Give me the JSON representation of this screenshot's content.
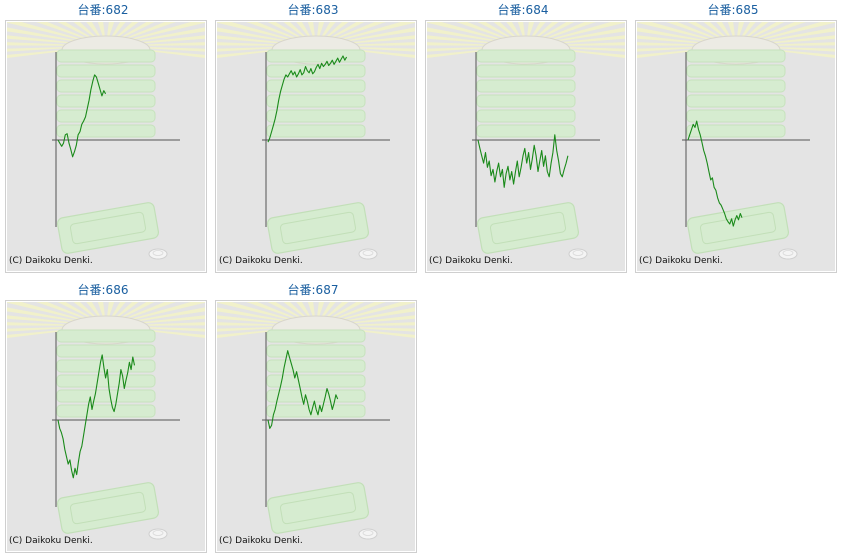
{
  "colors": {
    "title": "#1a5fa0",
    "graph_line": "#1a8a1a",
    "axis": "#555555",
    "panel_bg": "#e4e4e4",
    "ray": "#f2f2c8",
    "machine": "#d6ecd0",
    "frame_border": "#cfcfcf"
  },
  "copyright": "(C) Daikoku Denki.",
  "background_icons": [
    "light-rays",
    "slot-machine-stack",
    "coin-tray",
    "medal-coin-icon"
  ],
  "chart_data": [
    {
      "type": "line",
      "title": "台番:682",
      "series": [
        {
          "values": [
            0,
            -3,
            -6,
            -3,
            5,
            6,
            -3,
            -9,
            -16,
            -11,
            -5,
            5,
            8,
            15,
            18,
            22,
            30,
            38,
            48,
            56,
            62,
            60,
            54,
            48,
            42,
            47,
            44
          ]
        }
      ]
    },
    {
      "type": "line",
      "title": "台番:683",
      "series": [
        {
          "values": [
            -2,
            2,
            8,
            14,
            20,
            28,
            38,
            46,
            52,
            58,
            62,
            60,
            63,
            66,
            62,
            65,
            60,
            63,
            67,
            62,
            64,
            70,
            66,
            64,
            68,
            63,
            65,
            69,
            72,
            68,
            73,
            70,
            72,
            75,
            71,
            73,
            76,
            72,
            75,
            78,
            74,
            77,
            80,
            76,
            79
          ]
        }
      ]
    },
    {
      "type": "line",
      "title": "台番:684",
      "series": [
        {
          "values": [
            0,
            -8,
            -15,
            -22,
            -12,
            -26,
            -20,
            -34,
            -28,
            -40,
            -30,
            -22,
            -35,
            -28,
            -45,
            -32,
            -25,
            -38,
            -30,
            -42,
            -30,
            -20,
            -35,
            -26,
            -15,
            -8,
            -22,
            -12,
            -28,
            -18,
            -5,
            -15,
            -30,
            -20,
            -10,
            -25,
            -15,
            -30,
            -35,
            -22,
            -12,
            5,
            -10,
            -20,
            -32,
            -35,
            -28,
            -22,
            -15
          ]
        }
      ]
    },
    {
      "type": "line",
      "title": "台番:685",
      "series": [
        {
          "values": [
            0,
            5,
            10,
            15,
            12,
            18,
            10,
            5,
            -2,
            -10,
            -15,
            -22,
            -30,
            -38,
            -36,
            -45,
            -48,
            -55,
            -60,
            -62,
            -66,
            -70,
            -75,
            -78,
            -80,
            -75,
            -82,
            -76,
            -72,
            -76,
            -70,
            -74
          ]
        }
      ]
    },
    {
      "type": "line",
      "title": "台番:686",
      "series": [
        {
          "values": [
            0,
            -8,
            -12,
            -18,
            -28,
            -35,
            -42,
            -38,
            -48,
            -55,
            -46,
            -52,
            -40,
            -30,
            -25,
            -15,
            -5,
            5,
            15,
            22,
            10,
            18,
            25,
            35,
            45,
            55,
            62,
            50,
            40,
            48,
            30,
            20,
            12,
            8,
            15,
            25,
            35,
            48,
            42,
            30,
            38,
            45,
            55,
            48,
            60,
            52
          ]
        }
      ]
    },
    {
      "type": "line",
      "title": "台番:687",
      "series": [
        {
          "values": [
            0,
            -8,
            -5,
            5,
            10,
            18,
            25,
            32,
            40,
            50,
            58,
            66,
            60,
            54,
            48,
            40,
            46,
            38,
            30,
            22,
            15,
            24,
            18,
            10,
            5,
            12,
            18,
            10,
            5,
            14,
            8,
            15,
            22,
            30,
            25,
            18,
            10,
            16,
            24,
            20
          ]
        }
      ]
    }
  ]
}
